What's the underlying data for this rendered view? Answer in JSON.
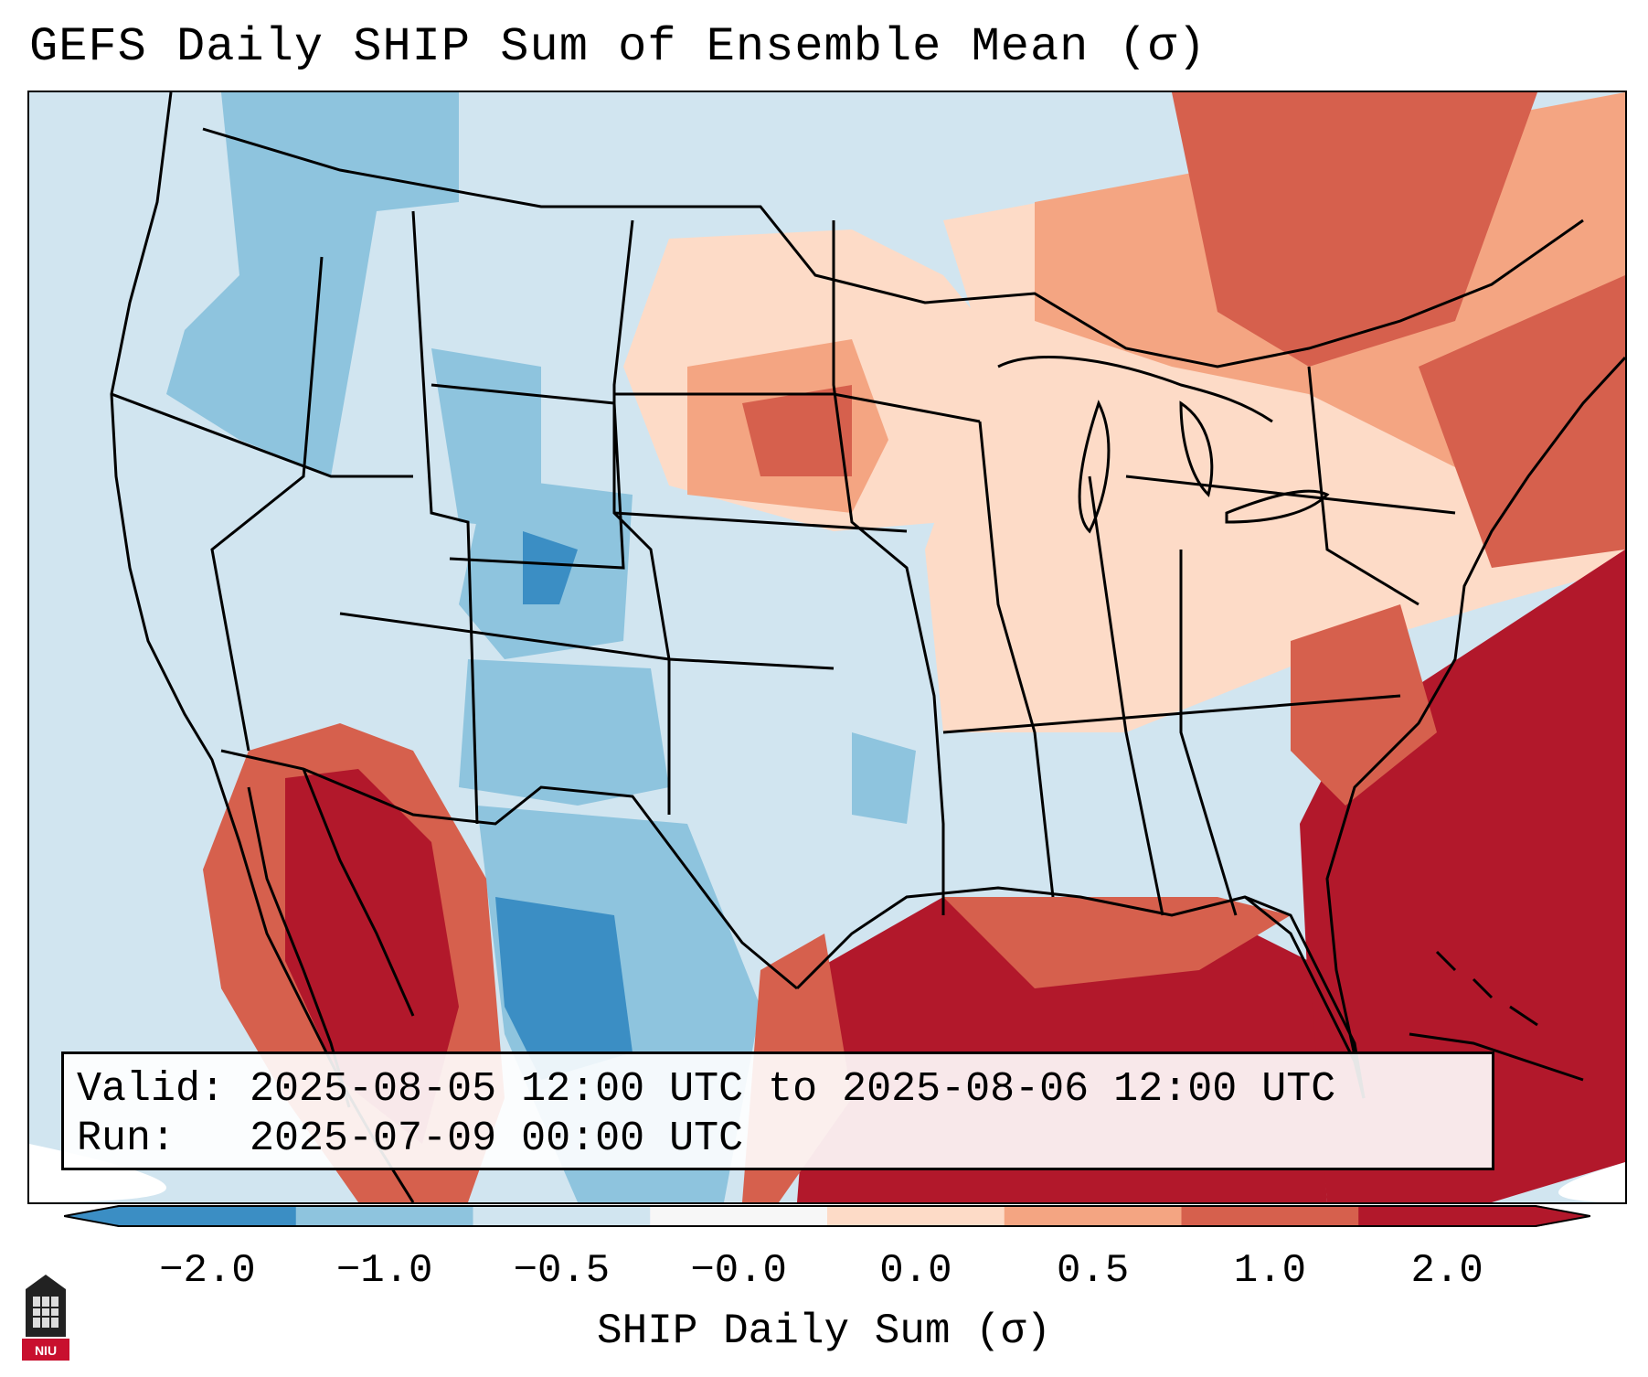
{
  "title": "GEFS Daily SHIP Sum of Ensemble Mean (σ)",
  "info_box": {
    "valid": "Valid: 2025-08-05 12:00 UTC to 2025-08-06 12:00 UTC",
    "run": "Run:   2025-07-09 00:00 UTC"
  },
  "colorbar": {
    "label": "SHIP Daily Sum (σ)",
    "ticks": [
      "−2.0",
      "−1.0",
      "−0.5",
      "−0.0",
      "0.0",
      "0.5",
      "1.0",
      "2.0"
    ],
    "colors": [
      "#3b8ec4",
      "#8ec4de",
      "#d1e5f0",
      "#f7f7f7",
      "#fddbc7",
      "#f4a582",
      "#d6604d",
      "#b2182b"
    ],
    "extend": "both"
  },
  "map": {
    "region": "Contiguous United States",
    "ocean_color": "#d1e5f0",
    "boundary_color": "#000000"
  },
  "logo": {
    "text": "NIU",
    "color": "#c8102e"
  }
}
